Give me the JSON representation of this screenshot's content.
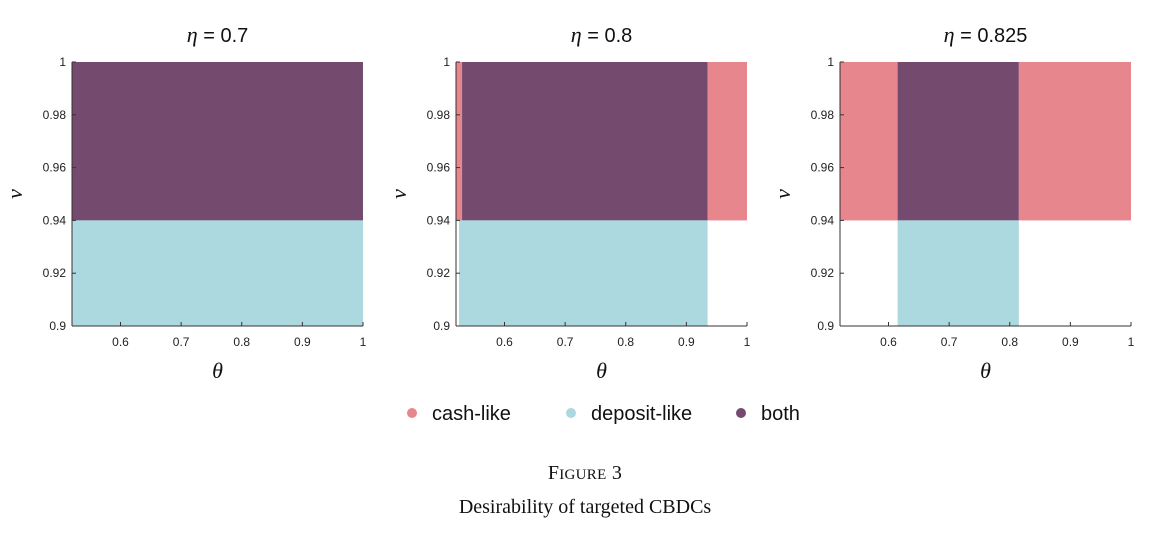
{
  "figure": {
    "label_first": "F",
    "label_rest": "IGURE",
    "label_number": " 3",
    "caption": "Desirability of targeted CBDCs"
  },
  "legend": [
    {
      "key": "cash",
      "label": "cash-like",
      "color": "#e8868e"
    },
    {
      "key": "deposit",
      "label": "deposit-like",
      "color": "#acd8e0"
    },
    {
      "key": "both",
      "label": "both",
      "color": "#744a6e"
    }
  ],
  "chart_data": [
    {
      "type": "heatmap",
      "title_symbol": "η",
      "title_value": " = 0.7",
      "xlabel": "θ",
      "ylabel": "ν",
      "xlim": [
        0.52,
        1.0
      ],
      "ylim": [
        0.9,
        1.0
      ],
      "xticks": [
        0.6,
        0.7,
        0.8,
        0.9,
        1.0
      ],
      "xtick_labels": [
        "0.6",
        "0.7",
        "0.8",
        "0.9",
        "1"
      ],
      "yticks": [
        0.9,
        0.92,
        0.94,
        0.96,
        0.98,
        1.0
      ],
      "ytick_labels": [
        "0.9",
        "0.92",
        "0.94",
        "0.96",
        "0.98",
        "1"
      ],
      "regions": [
        {
          "category": "both",
          "x": [
            0.52,
            1.0
          ],
          "y": [
            0.94,
            1.0
          ]
        },
        {
          "category": "deposit",
          "x": [
            0.52,
            1.0
          ],
          "y": [
            0.9,
            0.94
          ]
        }
      ]
    },
    {
      "type": "heatmap",
      "title_symbol": "η",
      "title_value": " = 0.8",
      "xlabel": "θ",
      "ylabel": "ν",
      "xlim": [
        0.52,
        1.0
      ],
      "ylim": [
        0.9,
        1.0
      ],
      "xticks": [
        0.6,
        0.7,
        0.8,
        0.9,
        1.0
      ],
      "xtick_labels": [
        "0.6",
        "0.7",
        "0.8",
        "0.9",
        "1"
      ],
      "yticks": [
        0.9,
        0.92,
        0.94,
        0.96,
        0.98,
        1.0
      ],
      "ytick_labels": [
        "0.9",
        "0.92",
        "0.94",
        "0.96",
        "0.98",
        "1"
      ],
      "regions": [
        {
          "category": "cash",
          "x": [
            0.52,
            0.53
          ],
          "y": [
            0.94,
            1.0
          ]
        },
        {
          "category": "both",
          "x": [
            0.53,
            0.935
          ],
          "y": [
            0.94,
            1.0
          ]
        },
        {
          "category": "cash",
          "x": [
            0.935,
            1.0
          ],
          "y": [
            0.94,
            1.0
          ]
        },
        {
          "category": "deposit",
          "x": [
            0.525,
            0.935
          ],
          "y": [
            0.9,
            0.94
          ]
        }
      ]
    },
    {
      "type": "heatmap",
      "title_symbol": "η",
      "title_value": " = 0.825",
      "xlabel": "θ",
      "ylabel": "ν",
      "xlim": [
        0.52,
        1.0
      ],
      "ylim": [
        0.9,
        1.0
      ],
      "xticks": [
        0.6,
        0.7,
        0.8,
        0.9,
        1.0
      ],
      "xtick_labels": [
        "0.6",
        "0.7",
        "0.8",
        "0.9",
        "1"
      ],
      "yticks": [
        0.9,
        0.92,
        0.94,
        0.96,
        0.98,
        1.0
      ],
      "ytick_labels": [
        "0.9",
        "0.92",
        "0.94",
        "0.96",
        "0.98",
        "1"
      ],
      "regions": [
        {
          "category": "cash",
          "x": [
            0.52,
            0.615
          ],
          "y": [
            0.94,
            1.0
          ]
        },
        {
          "category": "both",
          "x": [
            0.615,
            0.815
          ],
          "y": [
            0.94,
            1.0
          ]
        },
        {
          "category": "cash",
          "x": [
            0.815,
            1.0
          ],
          "y": [
            0.94,
            1.0
          ]
        },
        {
          "category": "deposit",
          "x": [
            0.615,
            0.815
          ],
          "y": [
            0.9,
            0.94
          ]
        }
      ]
    }
  ]
}
